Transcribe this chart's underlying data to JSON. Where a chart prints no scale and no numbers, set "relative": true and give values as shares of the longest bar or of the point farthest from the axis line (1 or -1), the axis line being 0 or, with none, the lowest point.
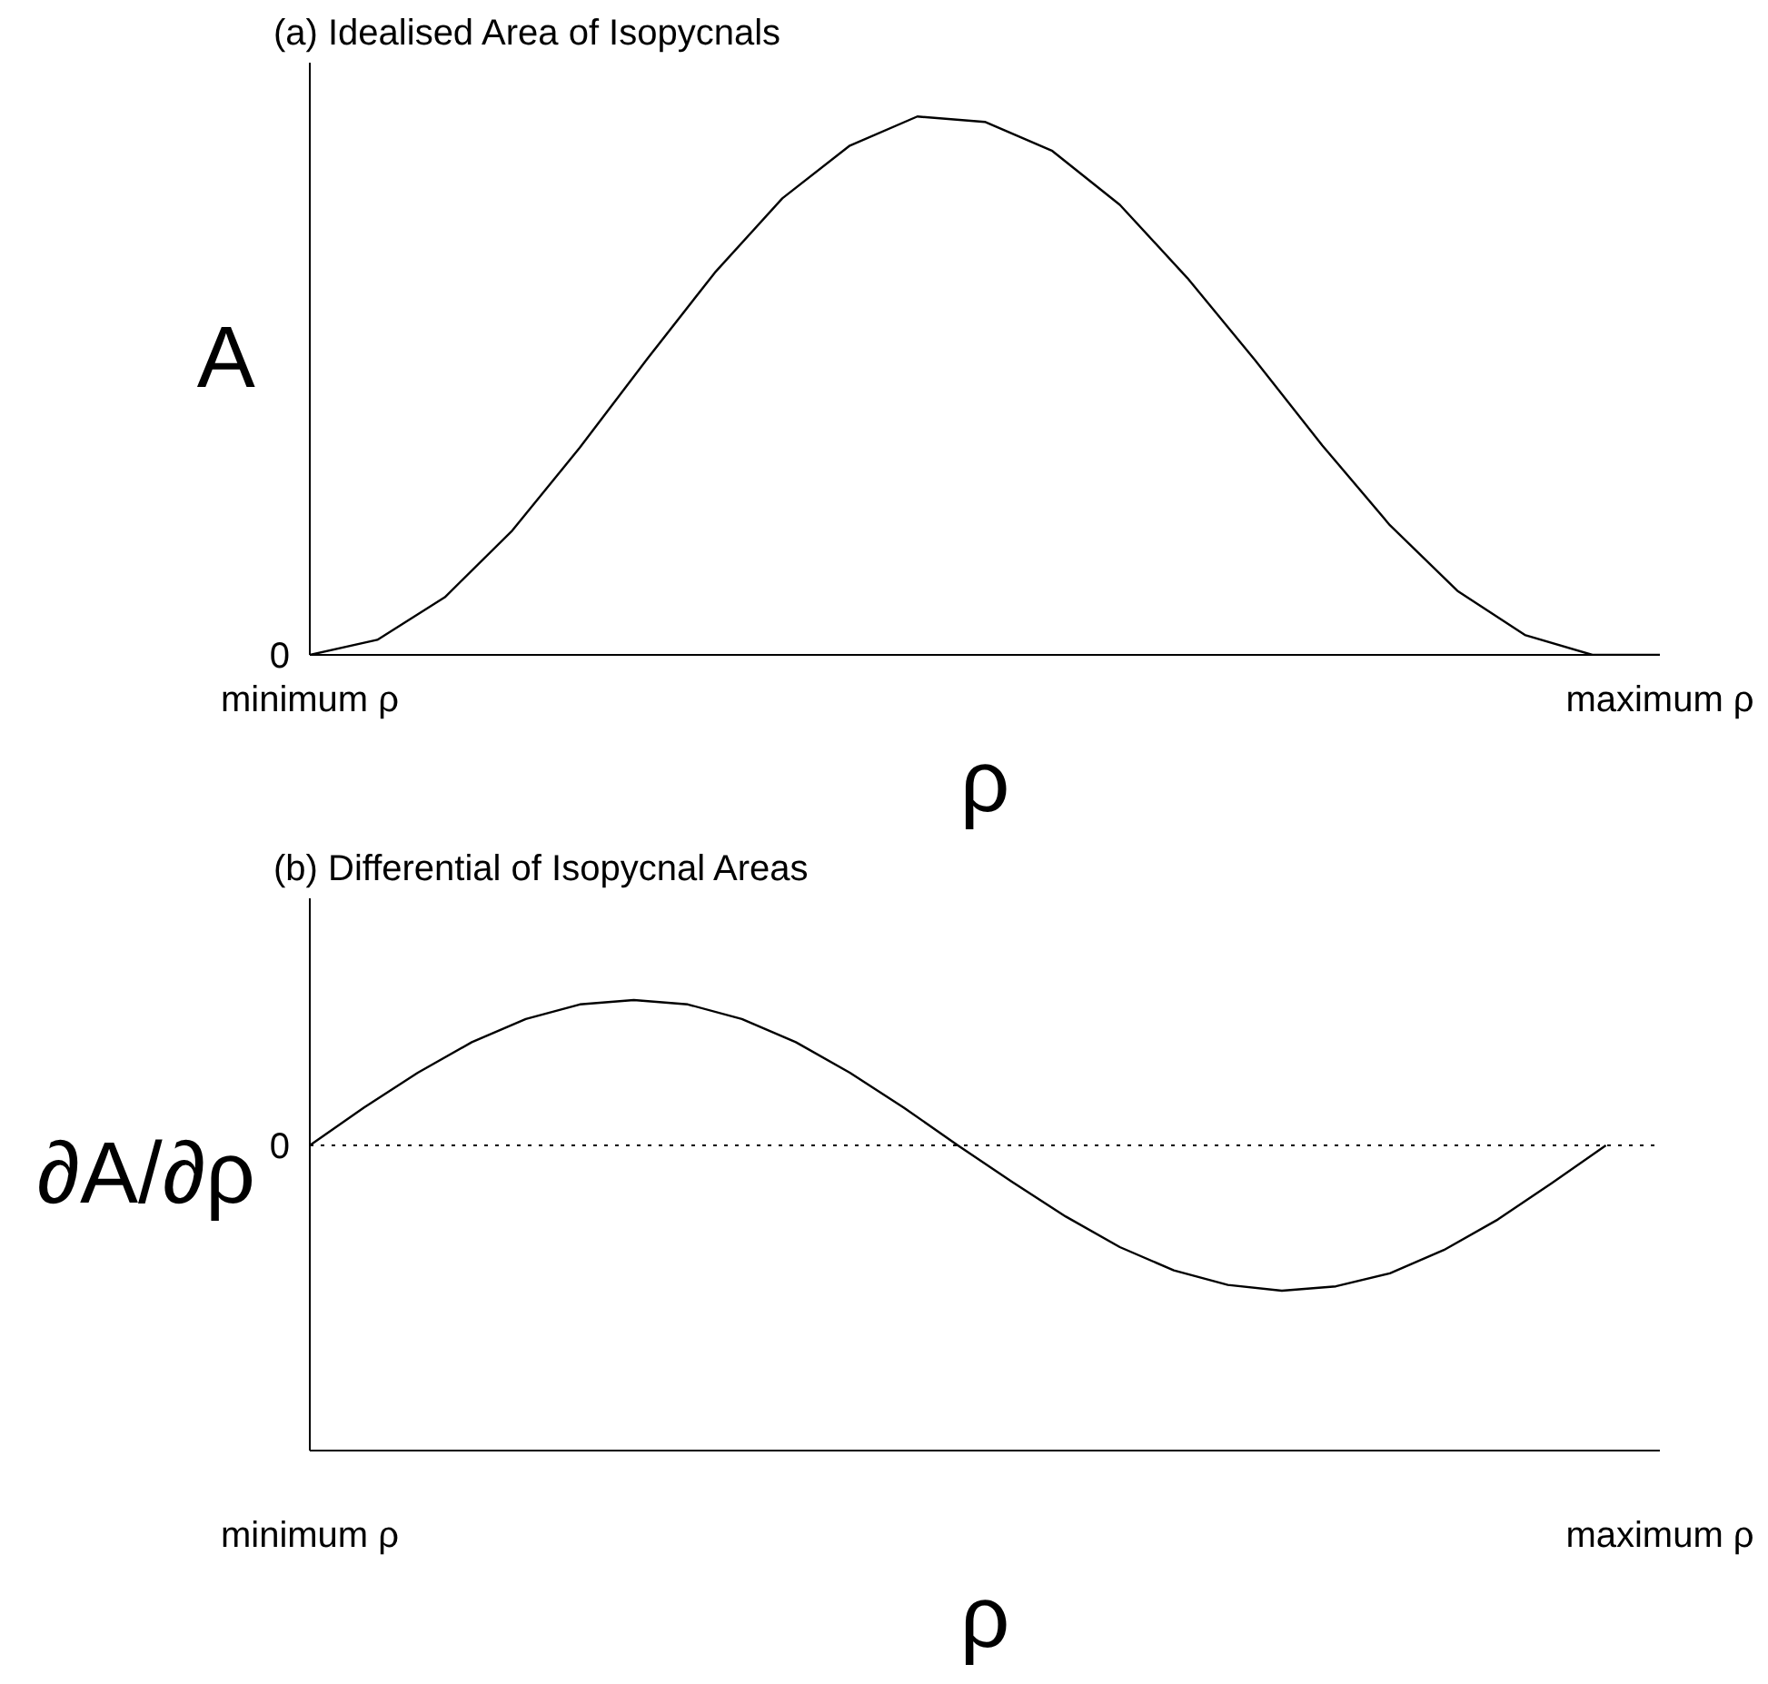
{
  "chart_data": [
    {
      "type": "line",
      "title": "(a) Idealised Area of Isopycnals",
      "xlabel": "ρ",
      "ylabel": "A",
      "relative": true,
      "categories": [
        "minimum ρ",
        null,
        null,
        null,
        null,
        null,
        null,
        null,
        null,
        null,
        null,
        null,
        null,
        null,
        null,
        null,
        null,
        null,
        null,
        null,
        "maximum ρ"
      ],
      "series": [
        {
          "color": "#000000",
          "values": [
            0,
            0.028,
            0.107,
            0.231,
            0.385,
            0.55,
            0.71,
            0.848,
            0.946,
            1,
            0.99,
            0.936,
            0.836,
            0.7,
            0.548,
            0.389,
            0.241,
            0.119,
            0.037,
            0,
            0
          ]
        }
      ],
      "annotations": [
        "0"
      ]
    },
    {
      "type": "line",
      "title": "(b) Differential of Isopycnal Areas",
      "xlabel": "ρ",
      "ylabel": "∂A/∂ρ",
      "relative": true,
      "categories": [
        "minimum ρ",
        null,
        null,
        null,
        null,
        null,
        null,
        null,
        null,
        null,
        null,
        null,
        null,
        null,
        null,
        null,
        null,
        null,
        null,
        null,
        null,
        null,
        null,
        null,
        null,
        "maximum ρ"
      ],
      "series": [
        {
          "color": "#000000",
          "values": [
            0,
            0.26,
            0.5,
            0.71,
            0.87,
            0.97,
            1,
            0.97,
            0.87,
            0.71,
            0.5,
            0.26,
            0,
            -0.25,
            -0.49,
            -0.7,
            -0.86,
            -0.96,
            -1,
            -0.97,
            -0.88,
            -0.72,
            -0.51,
            -0.26,
            0,
            null
          ]
        }
      ],
      "ref_lines": [
        {
          "axis": "y",
          "value": 0,
          "label": "0",
          "line_style": "dotted",
          "color": "#000000"
        }
      ]
    }
  ]
}
